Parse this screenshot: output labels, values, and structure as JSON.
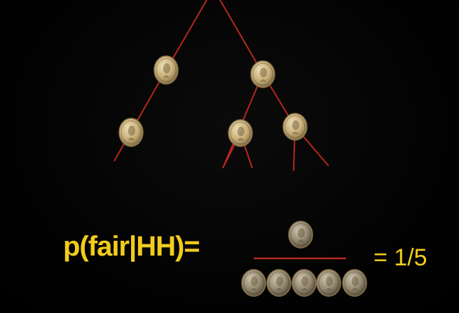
{
  "formula": {
    "lhs": "p(fair|HH)=",
    "rhs": "= 1/5"
  },
  "colors": {
    "text": "#f2cc1b",
    "branch": "#b7261f",
    "coin_face": "#c9b07a",
    "coin_rim": "#8a7348"
  },
  "icons": {
    "coin": "coin-icon"
  },
  "counts": {
    "numerator_coins": 1,
    "denominator_coins": 5
  }
}
